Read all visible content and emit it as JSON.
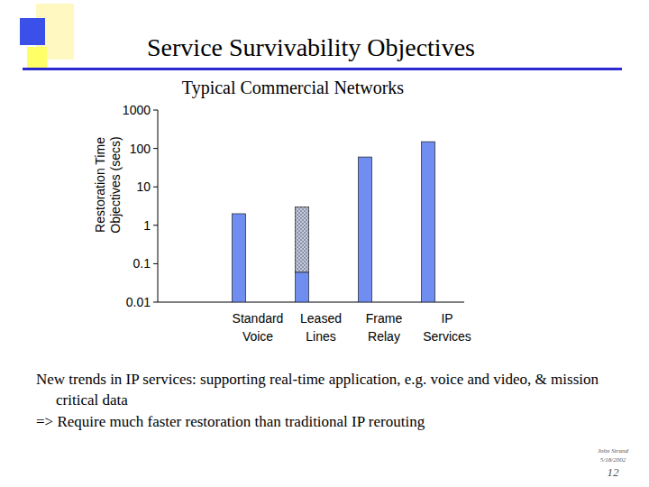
{
  "slide": {
    "title": "Service Survivability Objectives",
    "notes": [
      "New trends in IP services: supporting real-time application, e.g. voice and video, & mission critical data",
      "=> Require much faster restoration than traditional IP rerouting"
    ],
    "footer": {
      "author": "John Strand",
      "date": "5/18/2002",
      "page": "12"
    }
  },
  "chart_data": {
    "type": "bar",
    "title": "Typical Commercial Networks",
    "y_label": "Restoration Time Objectives (secs)",
    "categories": [
      null,
      "Standard Voice",
      "Leased Lines",
      "Frame Relay",
      "IP Services"
    ],
    "series": [
      {
        "color": "#6f8ef0",
        "values": [
          null,
          2,
          0.06,
          60,
          150
        ]
      },
      {
        "color": "#c4cce0",
        "values": [
          null,
          null,
          2.94,
          null,
          null
        ]
      }
    ],
    "stacked": true,
    "log": "y",
    "grid": false,
    "ylim": [
      0.01,
      1000
    ],
    "yticks": [
      0.01,
      0.1,
      1,
      10,
      100,
      1000
    ]
  }
}
